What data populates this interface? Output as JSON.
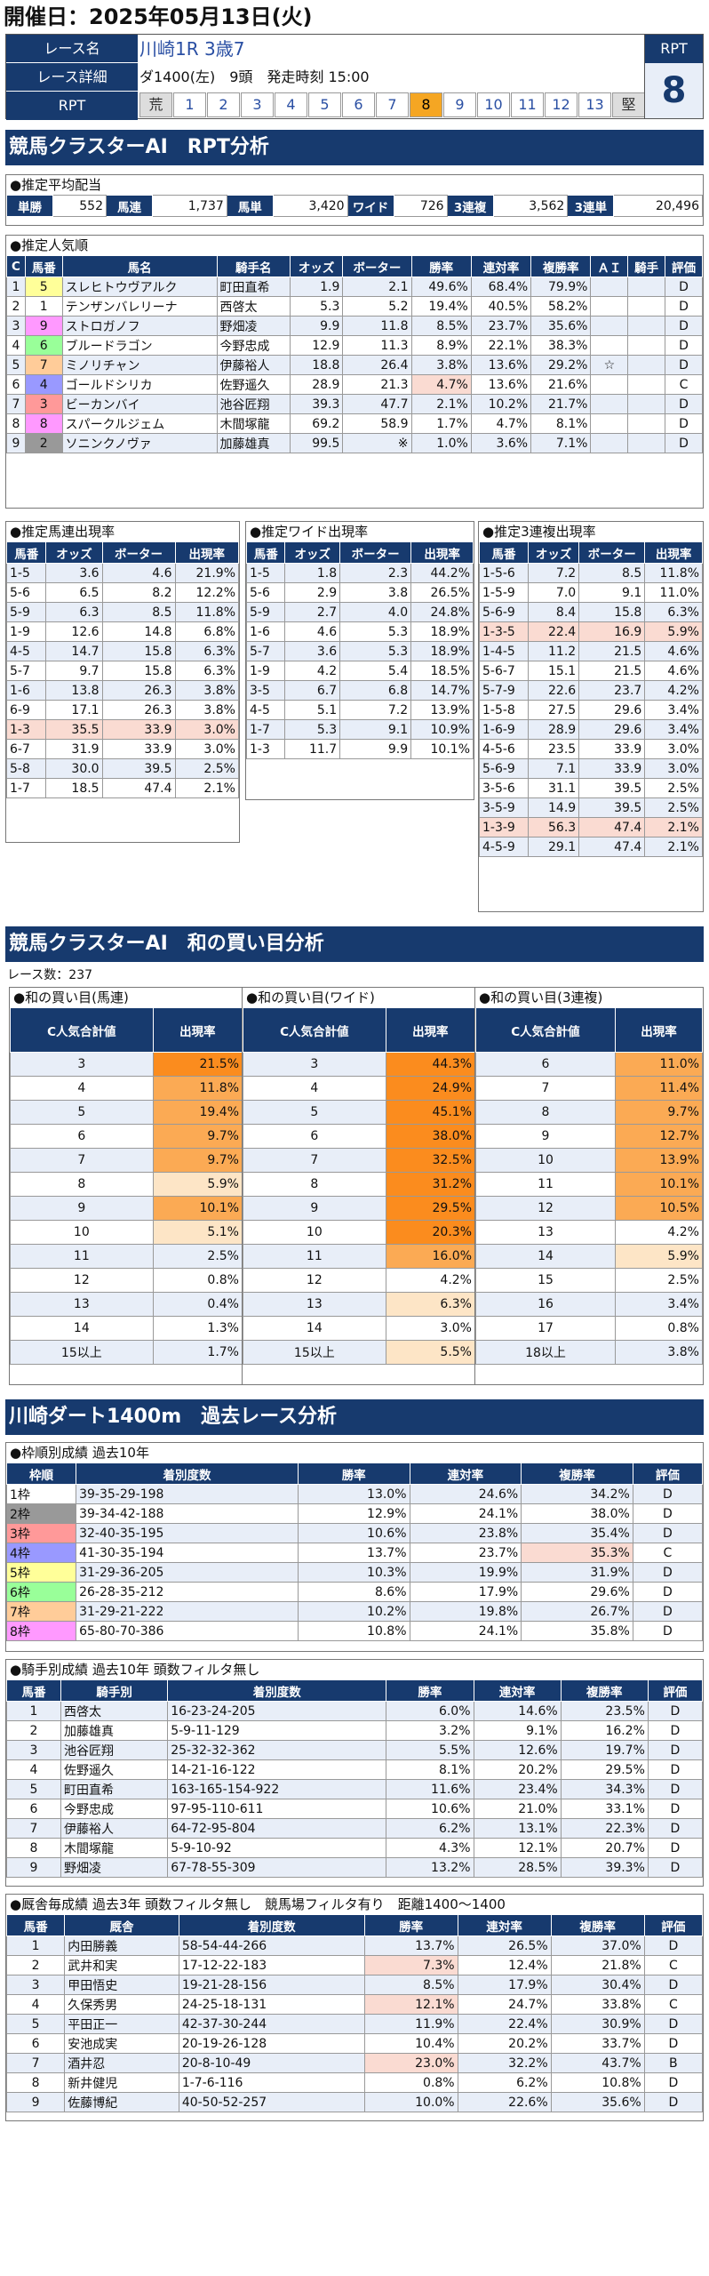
{
  "header": {
    "date": "開催日：2025年05月13日(火)"
  },
  "race": {
    "name_label": "レース名",
    "name": "川崎1R 3歳7",
    "detail_label": "レース詳細",
    "detail": "ダ1400(左)　9頭　発走時刻 15:00",
    "rpt_label": "RPT",
    "rpt_title": "RPT",
    "rpt_value": "8",
    "scale": [
      "荒",
      "1",
      "2",
      "3",
      "4",
      "5",
      "6",
      "7",
      "8",
      "9",
      "10",
      "11",
      "12",
      "13",
      "堅"
    ]
  },
  "sec1": "競馬クラスターAI　RPT分析",
  "payout": {
    "caption": "●推定平均配当",
    "items": [
      [
        "単勝",
        "552"
      ],
      [
        "馬連",
        "1,737"
      ],
      [
        "馬単",
        "3,420"
      ],
      [
        "ワイド",
        "726"
      ],
      [
        "3連複",
        "3,562"
      ],
      [
        "3連単",
        "20,496"
      ]
    ]
  },
  "pop": {
    "caption": "●推定人気順",
    "headers": [
      "C",
      "馬番",
      "馬名",
      "騎手名",
      "オッズ",
      "ボーター",
      "勝率",
      "連対率",
      "複勝率",
      "ＡＩ",
      "騎手",
      "評価"
    ],
    "rows": [
      [
        "1",
        "5",
        "スレヒトウヴアルク",
        "町田直希",
        "1.9",
        "2.1",
        "49.6%",
        "68.4%",
        "79.9%",
        "",
        "",
        "D"
      ],
      [
        "2",
        "1",
        "テンザンバレリーナ",
        "西啓太",
        "5.3",
        "5.2",
        "19.4%",
        "40.5%",
        "58.2%",
        "",
        "",
        "D"
      ],
      [
        "3",
        "9",
        "ストロガノフ",
        "野畑凌",
        "9.9",
        "11.8",
        "8.5%",
        "23.7%",
        "35.6%",
        "",
        "",
        "D"
      ],
      [
        "4",
        "6",
        "ブルードラゴン",
        "今野忠成",
        "12.9",
        "11.3",
        "8.9%",
        "22.1%",
        "38.3%",
        "",
        "",
        "D"
      ],
      [
        "5",
        "7",
        "ミノリチャン",
        "伊藤裕人",
        "18.8",
        "26.4",
        "3.8%",
        "13.6%",
        "29.2%",
        "☆",
        "",
        "D"
      ],
      [
        "6",
        "4",
        "ゴールドシリカ",
        "佐野遥久",
        "28.9",
        "21.3",
        "4.7%",
        "13.6%",
        "21.6%",
        "",
        "",
        "C"
      ],
      [
        "7",
        "3",
        "ビーカンバイ",
        "池谷匠翔",
        "39.3",
        "47.7",
        "2.1%",
        "10.2%",
        "21.7%",
        "",
        "",
        "D"
      ],
      [
        "8",
        "8",
        "スパークルジェム",
        "木間塚龍",
        "69.2",
        "58.9",
        "1.7%",
        "4.7%",
        "8.1%",
        "",
        "",
        "D"
      ],
      [
        "9",
        "2",
        "ソニンクノヴァ",
        "加藤雄真",
        "99.5",
        "※",
        "1.0%",
        "3.6%",
        "7.1%",
        "",
        "",
        "D"
      ]
    ]
  },
  "umaren": {
    "caption": "●推定馬連出現率",
    "headers": [
      "馬番",
      "オッズ",
      "ボーター",
      "出現率"
    ],
    "rows": [
      [
        "1-5",
        "3.6",
        "4.6",
        "21.9%"
      ],
      [
        "5-6",
        "6.5",
        "8.2",
        "12.2%"
      ],
      [
        "5-9",
        "6.3",
        "8.5",
        "11.8%"
      ],
      [
        "1-9",
        "12.6",
        "14.8",
        "6.8%"
      ],
      [
        "4-5",
        "14.7",
        "15.8",
        "6.3%"
      ],
      [
        "5-7",
        "9.7",
        "15.8",
        "6.3%"
      ],
      [
        "1-6",
        "13.8",
        "26.3",
        "3.8%"
      ],
      [
        "6-9",
        "17.1",
        "26.3",
        "3.8%"
      ],
      [
        "1-3",
        "35.5",
        "33.9",
        "3.0%"
      ],
      [
        "6-7",
        "31.9",
        "33.9",
        "3.0%"
      ],
      [
        "5-8",
        "30.0",
        "39.5",
        "2.5%"
      ],
      [
        "1-7",
        "18.5",
        "47.4",
        "2.1%"
      ]
    ]
  },
  "wide": {
    "caption": "●推定ワイド出現率",
    "headers": [
      "馬番",
      "オッズ",
      "ボーター",
      "出現率"
    ],
    "rows": [
      [
        "1-5",
        "1.8",
        "2.3",
        "44.2%"
      ],
      [
        "5-6",
        "2.9",
        "3.8",
        "26.5%"
      ],
      [
        "5-9",
        "2.7",
        "4.0",
        "24.8%"
      ],
      [
        "1-6",
        "4.6",
        "5.3",
        "18.9%"
      ],
      [
        "5-7",
        "3.6",
        "5.3",
        "18.9%"
      ],
      [
        "1-9",
        "4.2",
        "5.4",
        "18.5%"
      ],
      [
        "3-5",
        "6.7",
        "6.8",
        "14.7%"
      ],
      [
        "4-5",
        "5.1",
        "7.2",
        "13.9%"
      ],
      [
        "1-7",
        "5.3",
        "9.1",
        "10.9%"
      ],
      [
        "1-3",
        "11.7",
        "9.9",
        "10.1%"
      ]
    ]
  },
  "trio": {
    "caption": "●推定3連複出現率",
    "headers": [
      "馬番",
      "オッズ",
      "ボーター",
      "出現率"
    ],
    "rows": [
      [
        "1-5-6",
        "7.2",
        "8.5",
        "11.8%"
      ],
      [
        "1-5-9",
        "7.0",
        "9.1",
        "11.0%"
      ],
      [
        "5-6-9",
        "8.4",
        "15.8",
        "6.3%"
      ],
      [
        "1-3-5",
        "22.4",
        "16.9",
        "5.9%"
      ],
      [
        "1-4-5",
        "11.2",
        "21.5",
        "4.6%"
      ],
      [
        "5-6-7",
        "15.1",
        "21.5",
        "4.6%"
      ],
      [
        "5-7-9",
        "22.6",
        "23.7",
        "4.2%"
      ],
      [
        "1-5-8",
        "27.5",
        "29.6",
        "3.4%"
      ],
      [
        "1-6-9",
        "28.9",
        "29.6",
        "3.4%"
      ],
      [
        "4-5-6",
        "23.5",
        "33.9",
        "3.0%"
      ],
      [
        "5-6-9",
        "7.1",
        "33.9",
        "3.0%"
      ],
      [
        "3-5-6",
        "31.1",
        "39.5",
        "2.5%"
      ],
      [
        "3-5-9",
        "14.9",
        "39.5",
        "2.5%"
      ],
      [
        "1-3-9",
        "56.3",
        "47.4",
        "2.1%"
      ],
      [
        "4-5-9",
        "29.1",
        "47.4",
        "2.1%"
      ]
    ]
  },
  "sec2": "競馬クラスターAI　和の買い目分析",
  "racecount": "レース数：237",
  "sum_umaren": {
    "caption": "●和の買い目(馬連)",
    "h1": "C人気合計値",
    "h2": "出現率",
    "rows": [
      [
        "3",
        "21.5%"
      ],
      [
        "4",
        "11.8%"
      ],
      [
        "5",
        "19.4%"
      ],
      [
        "6",
        "9.7%"
      ],
      [
        "7",
        "9.7%"
      ],
      [
        "8",
        "5.9%"
      ],
      [
        "9",
        "10.1%"
      ],
      [
        "10",
        "5.1%"
      ],
      [
        "11",
        "2.5%"
      ],
      [
        "12",
        "0.8%"
      ],
      [
        "13",
        "0.4%"
      ],
      [
        "14",
        "1.3%"
      ],
      [
        "15以上",
        "1.7%"
      ]
    ]
  },
  "sum_wide": {
    "caption": "●和の買い目(ワイド)",
    "h1": "C人気合計値",
    "h2": "出現率",
    "rows": [
      [
        "3",
        "44.3%"
      ],
      [
        "4",
        "24.9%"
      ],
      [
        "5",
        "45.1%"
      ],
      [
        "6",
        "38.0%"
      ],
      [
        "7",
        "32.5%"
      ],
      [
        "8",
        "31.2%"
      ],
      [
        "9",
        "29.5%"
      ],
      [
        "10",
        "20.3%"
      ],
      [
        "11",
        "16.0%"
      ],
      [
        "12",
        "4.2%"
      ],
      [
        "13",
        "6.3%"
      ],
      [
        "14",
        "3.0%"
      ],
      [
        "15以上",
        "5.5%"
      ]
    ]
  },
  "sum_trio": {
    "caption": "●和の買い目(3連複)",
    "h1": "C人気合計値",
    "h2": "出現率",
    "rows": [
      [
        "6",
        "11.0%"
      ],
      [
        "7",
        "11.4%"
      ],
      [
        "8",
        "9.7%"
      ],
      [
        "9",
        "12.7%"
      ],
      [
        "10",
        "13.9%"
      ],
      [
        "11",
        "10.1%"
      ],
      [
        "12",
        "10.5%"
      ],
      [
        "13",
        "4.2%"
      ],
      [
        "14",
        "5.9%"
      ],
      [
        "15",
        "2.5%"
      ],
      [
        "16",
        "3.4%"
      ],
      [
        "17",
        "0.8%"
      ],
      [
        "18以上",
        "3.8%"
      ]
    ]
  },
  "sec3": "川崎ダート1400m　過去レース分析",
  "waku": {
    "caption": "●枠順別成績 過去10年",
    "headers": [
      "枠順",
      "着別度数",
      "勝率",
      "連対率",
      "複勝率",
      "評価"
    ],
    "rows": [
      [
        "1枠",
        "39-35-29-198",
        "13.0%",
        "24.6%",
        "34.2%",
        "D"
      ],
      [
        "2枠",
        "39-34-42-188",
        "12.9%",
        "24.1%",
        "38.0%",
        "D"
      ],
      [
        "3枠",
        "32-40-35-195",
        "10.6%",
        "23.8%",
        "35.4%",
        "D"
      ],
      [
        "4枠",
        "41-30-35-194",
        "13.7%",
        "23.7%",
        "35.3%",
        "C"
      ],
      [
        "5枠",
        "31-29-36-205",
        "10.3%",
        "19.9%",
        "31.9%",
        "D"
      ],
      [
        "6枠",
        "26-28-35-212",
        "8.6%",
        "17.9%",
        "29.6%",
        "D"
      ],
      [
        "7枠",
        "31-29-21-222",
        "10.2%",
        "19.8%",
        "26.7%",
        "D"
      ],
      [
        "8枠",
        "65-80-70-386",
        "10.8%",
        "24.1%",
        "35.8%",
        "D"
      ]
    ]
  },
  "jockey": {
    "caption": "●騎手別成績 過去10年 頭数フィルタ無し",
    "headers": [
      "馬番",
      "騎手別",
      "着別度数",
      "勝率",
      "連対率",
      "複勝率",
      "評価"
    ],
    "rows": [
      [
        "1",
        "西啓太",
        "16-23-24-205",
        "6.0%",
        "14.6%",
        "23.5%",
        "D"
      ],
      [
        "2",
        "加藤雄真",
        "5-9-11-129",
        "3.2%",
        "9.1%",
        "16.2%",
        "D"
      ],
      [
        "3",
        "池谷匠翔",
        "25-32-32-362",
        "5.5%",
        "12.6%",
        "19.7%",
        "D"
      ],
      [
        "4",
        "佐野遥久",
        "14-21-16-122",
        "8.1%",
        "20.2%",
        "29.5%",
        "D"
      ],
      [
        "5",
        "町田直希",
        "163-165-154-922",
        "11.6%",
        "23.4%",
        "34.3%",
        "D"
      ],
      [
        "6",
        "今野忠成",
        "97-95-110-611",
        "10.6%",
        "21.0%",
        "33.1%",
        "D"
      ],
      [
        "7",
        "伊藤裕人",
        "64-72-95-804",
        "6.2%",
        "13.1%",
        "22.3%",
        "D"
      ],
      [
        "8",
        "木間塚龍",
        "5-9-10-92",
        "4.3%",
        "12.1%",
        "20.7%",
        "D"
      ],
      [
        "9",
        "野畑凌",
        "67-78-55-309",
        "13.2%",
        "28.5%",
        "39.3%",
        "D"
      ]
    ]
  },
  "stable": {
    "caption": "●厩舎毎成績 過去3年 頭数フィルタ無し　競馬場フィルタ有り　距離1400～1400",
    "headers": [
      "馬番",
      "厩舎",
      "着別度数",
      "勝率",
      "連対率",
      "複勝率",
      "評価"
    ],
    "rows": [
      [
        "1",
        "内田勝義",
        "58-54-44-266",
        "13.7%",
        "26.5%",
        "37.0%",
        "D"
      ],
      [
        "2",
        "武井和実",
        "17-12-22-183",
        "7.3%",
        "12.4%",
        "21.8%",
        "C"
      ],
      [
        "3",
        "甲田悟史",
        "19-21-28-156",
        "8.5%",
        "17.9%",
        "30.4%",
        "D"
      ],
      [
        "4",
        "久保秀男",
        "24-25-18-131",
        "12.1%",
        "24.7%",
        "33.8%",
        "C"
      ],
      [
        "5",
        "平田正一",
        "42-37-30-244",
        "11.9%",
        "22.4%",
        "30.9%",
        "D"
      ],
      [
        "6",
        "安池成実",
        "20-19-26-128",
        "10.4%",
        "20.2%",
        "33.7%",
        "D"
      ],
      [
        "7",
        "酒井忍",
        "20-8-10-49",
        "23.0%",
        "32.2%",
        "43.7%",
        "B"
      ],
      [
        "8",
        "新井健児",
        "1-7-6-116",
        "0.8%",
        "6.2%",
        "10.8%",
        "D"
      ],
      [
        "9",
        "佐藤博紀",
        "40-50-52-257",
        "10.0%",
        "22.6%",
        "35.6%",
        "D"
      ]
    ]
  },
  "colors": {
    "navy": "#173a6e",
    "waku": [
      "#ffffff",
      "#999999",
      "#ff9999",
      "#9999ff",
      "#ffff99",
      "#99ff99",
      "#ffcc99",
      "#ff99ff"
    ]
  }
}
